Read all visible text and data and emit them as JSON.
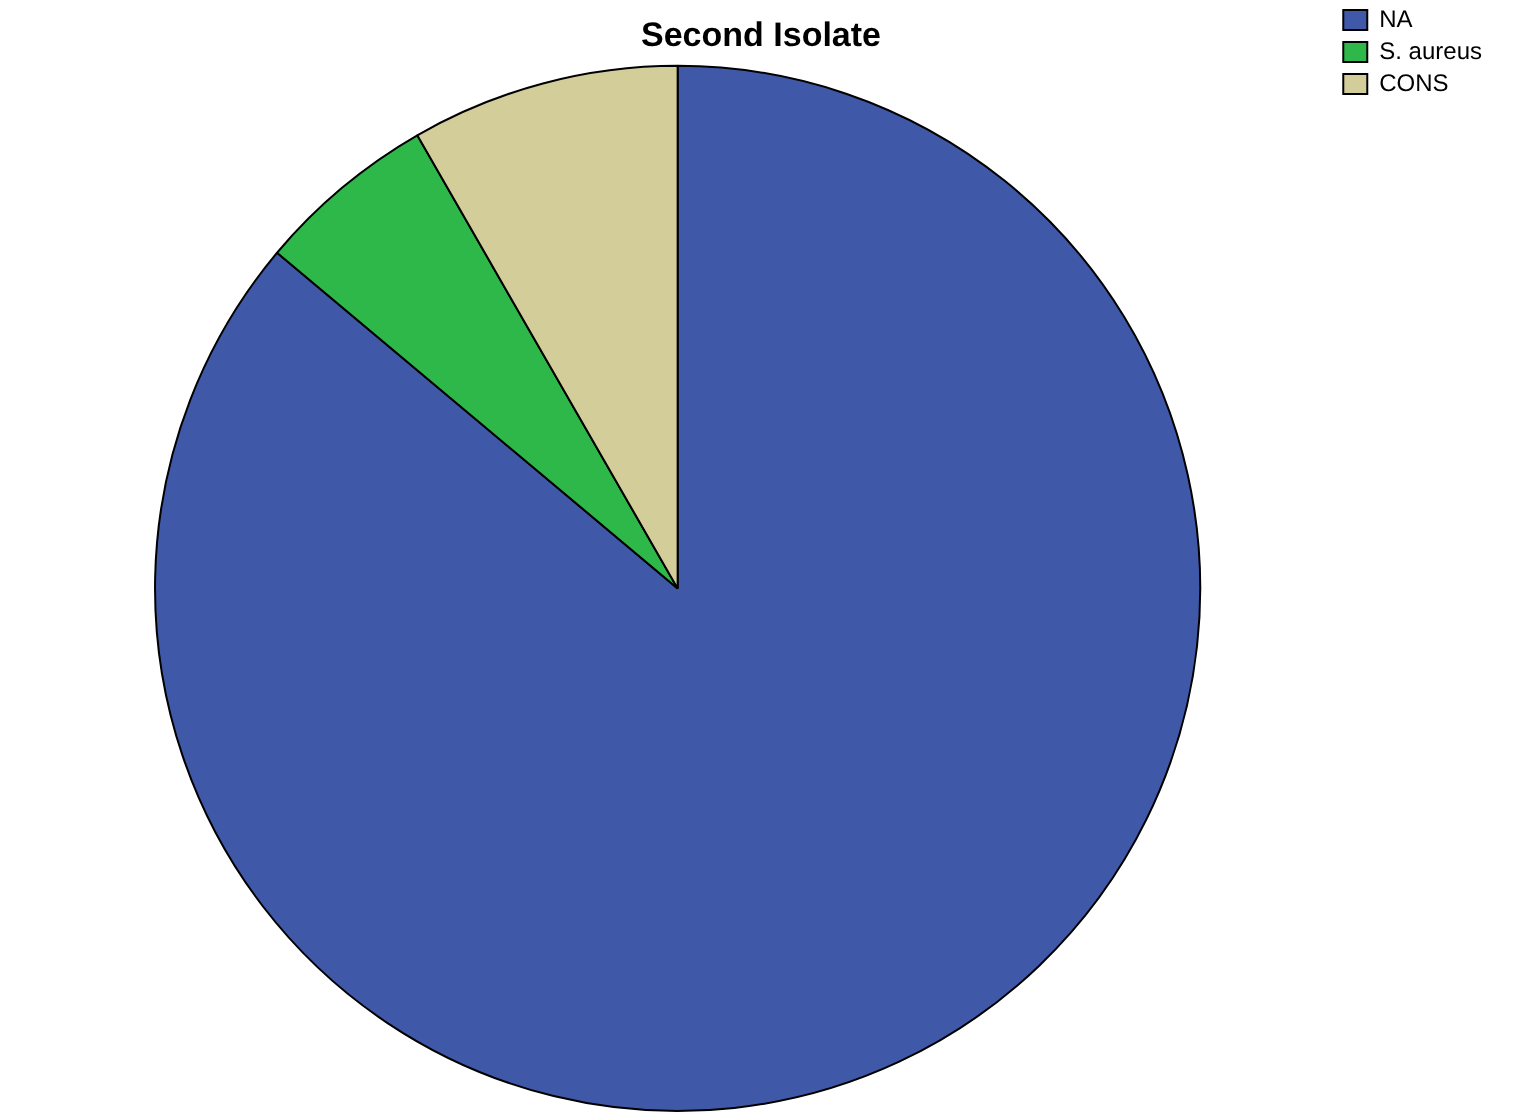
{
  "chart_data": {
    "type": "pie",
    "title": "Second Isolate",
    "categories": [
      "NA",
      "S. aureus",
      "CONS"
    ],
    "values": [
      86.1,
      5.6,
      8.3
    ],
    "colors": [
      "#3f58a8",
      "#2eb84a",
      "#d3cd9a"
    ],
    "legend": "top right"
  }
}
